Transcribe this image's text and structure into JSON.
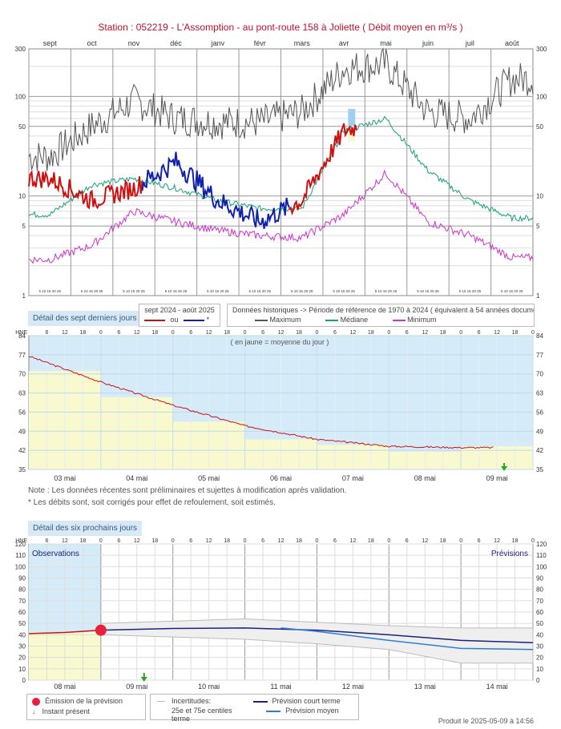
{
  "title": "Station : 052219      -  L'Assomption - au pont-route 158 à Joliette   ( Débit moyen en m³/s )",
  "annual": {
    "months": [
      "sept",
      "oct",
      "nov",
      "déc",
      "janv",
      "févr",
      "mars",
      "avr",
      "mai",
      "juin",
      "juil",
      "août"
    ],
    "y_ticks": [
      "300",
      "100",
      "50",
      "10",
      "5",
      "1"
    ],
    "day_ticks": "5 10 15 20 25",
    "legend_current_title": "sept 2024 - août 2025",
    "legend_current_ou": "ou",
    "legend_current_star": "*",
    "legend_hist_title": "Données historiques -> Période de référence  de 1970 à 2024  ( équivalent à 54 années documentées )",
    "legend_max": "Maximum",
    "legend_median": "Médiane",
    "legend_min": "Minimum",
    "colors": {
      "current_red": "#cc1111",
      "current_blue": "#1122aa",
      "max": "#555555",
      "median": "#16a07a",
      "min": "#cc33cc",
      "forecast_box": "#9fd0ef"
    }
  },
  "week": {
    "tag": "Détail des sept derniers jours",
    "hne": "HNE",
    "hour_labels": [
      "6",
      "12",
      "18",
      "0"
    ],
    "y_ticks": [
      "84",
      "77",
      "70",
      "63",
      "56",
      "49",
      "42",
      "35"
    ],
    "days": [
      "03 mai",
      "04 mai",
      "05 mai",
      "06 mai",
      "07 mai",
      "08 mai",
      "09 mai"
    ],
    "yellow_note": "( en jaune = moyenne du jour )",
    "note1": "Note : Les données récentes sont préliminaires et sujettes à modification après validation.",
    "note2": "* Les débits sont, soit corrigés pour effet de refoulement, soit estimés.",
    "colors": {
      "bg": "#d6ebf8",
      "daily_mean": "#f8f9cf",
      "series": "#cc1111",
      "now": "#22aa22"
    }
  },
  "forecast": {
    "tag": "Détail des six prochains jours",
    "hne": "HNE",
    "y_ticks": [
      "120",
      "110",
      "100",
      "90",
      "80",
      "70",
      "60",
      "50",
      "40",
      "30",
      "20",
      "10",
      "0"
    ],
    "days": [
      "08 mai",
      "09 mai",
      "10 mai",
      "11 mai",
      "12 mai",
      "13 mai",
      "14 mai"
    ],
    "observations": "Observations",
    "previsions": "Prévisions",
    "legend_emission": "Émission de la prévision",
    "legend_instant": "Instant présent",
    "legend_incert": "Incertitudes:",
    "legend_incert2": "25e et 75e centiles",
    "legend_short": "Prévision court terme",
    "legend_medium": "Prévision moyen terme",
    "colors": {
      "obs_bg": "#d6ebf8",
      "mean_yellow": "#f8f9cf",
      "emission": "#e8203c",
      "short": "#1a237e",
      "medium": "#2e7dd1",
      "band": "#c9c9c9"
    }
  },
  "produced": "Produit le 2025-05-09 à 14:56",
  "chart_data": [
    {
      "type": "line",
      "title": "Station : 052219 - L'Assomption - au pont-route 158 à Joliette ( Débit moyen en m³/s )",
      "y_scale": "log",
      "ylim": [
        1,
        300
      ],
      "x": [
        "sept",
        "oct",
        "nov",
        "déc",
        "janv",
        "févr",
        "mars",
        "avr",
        "mai",
        "juin",
        "juil",
        "août"
      ],
      "series": [
        {
          "name": "Maximum",
          "values": [
            25,
            50,
            90,
            60,
            55,
            55,
            70,
            190,
            210,
            70,
            60,
            150
          ]
        },
        {
          "name": "Médiane",
          "values": [
            6.5,
            13,
            15,
            12,
            9,
            7.5,
            7.5,
            45,
            60,
            18,
            9,
            6
          ]
        },
        {
          "name": "Minimum",
          "values": [
            2.3,
            3.2,
            7,
            5.5,
            4.5,
            4,
            3.8,
            6.5,
            17,
            5.5,
            4,
            2.4
          ]
        },
        {
          "name": "sept 2024 - août 2025",
          "values": [
            15,
            9,
            12,
            22,
            9,
            5.5,
            9,
            45,
            60,
            null,
            null,
            null
          ]
        }
      ]
    },
    {
      "type": "line",
      "ylim": [
        35,
        84
      ],
      "x": [
        "03 mai",
        "04 mai",
        "05 mai",
        "06 mai",
        "07 mai",
        "08 mai",
        "09 mai"
      ],
      "series": [
        {
          "name": "Débit",
          "values": [
            76.5,
            67,
            58.5,
            51,
            46,
            43.5,
            43
          ]
        },
        {
          "name": "moyenne du jour",
          "values": [
            71,
            61.5,
            52.5,
            46,
            44,
            41.5,
            43.5
          ]
        }
      ]
    },
    {
      "type": "line",
      "ylim": [
        0,
        120
      ],
      "x": [
        "08 mai",
        "09 mai",
        "10 mai",
        "11 mai",
        "12 mai",
        "13 mai",
        "14 mai"
      ],
      "series": [
        {
          "name": "Prévision court terme",
          "values": [
            42,
            44,
            45.5,
            46,
            44,
            40,
            35
          ]
        },
        {
          "name": "Prévision moyen terme",
          "values": [
            null,
            null,
            null,
            46,
            43,
            35,
            28
          ]
        },
        {
          "name": "Incertitudes 75e",
          "values": [
            null,
            50,
            52,
            54,
            51,
            48,
            46
          ]
        },
        {
          "name": "Incertitudes 25e",
          "values": [
            null,
            40,
            38,
            36,
            32,
            27,
            15
          ]
        }
      ]
    }
  ]
}
